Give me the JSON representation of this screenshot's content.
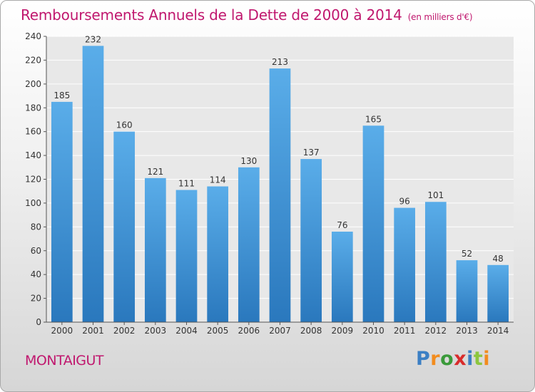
{
  "header": {
    "title": "Remboursements Annuels de la Dette de 2000 à 2014",
    "unit": "(en milliers d'€)"
  },
  "footer": {
    "city": "MONTAIGUT",
    "brand": "Proxiti",
    "brand_letters": [
      {
        "ch": "P",
        "color": "#3b7fc4"
      },
      {
        "ch": "r",
        "color": "#f28c1e"
      },
      {
        "ch": "o",
        "color": "#3a9a3a"
      },
      {
        "ch": "x",
        "color": "#d82c2c"
      },
      {
        "ch": "i",
        "color": "#3b7fc4"
      },
      {
        "ch": "t",
        "color": "#8cc63f"
      },
      {
        "ch": "i",
        "color": "#f28c1e"
      }
    ]
  },
  "colors": {
    "bar_top": "#5aade9",
    "bar_bottom": "#2a78bd",
    "accent": "#c0176e"
  },
  "chart_data": {
    "type": "bar",
    "categories": [
      "2000",
      "2001",
      "2002",
      "2003",
      "2004",
      "2005",
      "2006",
      "2007",
      "2008",
      "2009",
      "2010",
      "2011",
      "2012",
      "2013",
      "2014"
    ],
    "values": [
      185,
      232,
      160,
      121,
      111,
      114,
      130,
      213,
      137,
      76,
      165,
      96,
      101,
      52,
      48
    ],
    "title": "Remboursements Annuels de la Dette de 2000 à 2014",
    "xlabel": "",
    "ylabel": "",
    "ylim": [
      0,
      240
    ],
    "yticks": [
      0,
      20,
      40,
      60,
      80,
      100,
      120,
      140,
      160,
      180,
      200,
      220,
      240
    ],
    "grid": true,
    "data_labels": true
  }
}
